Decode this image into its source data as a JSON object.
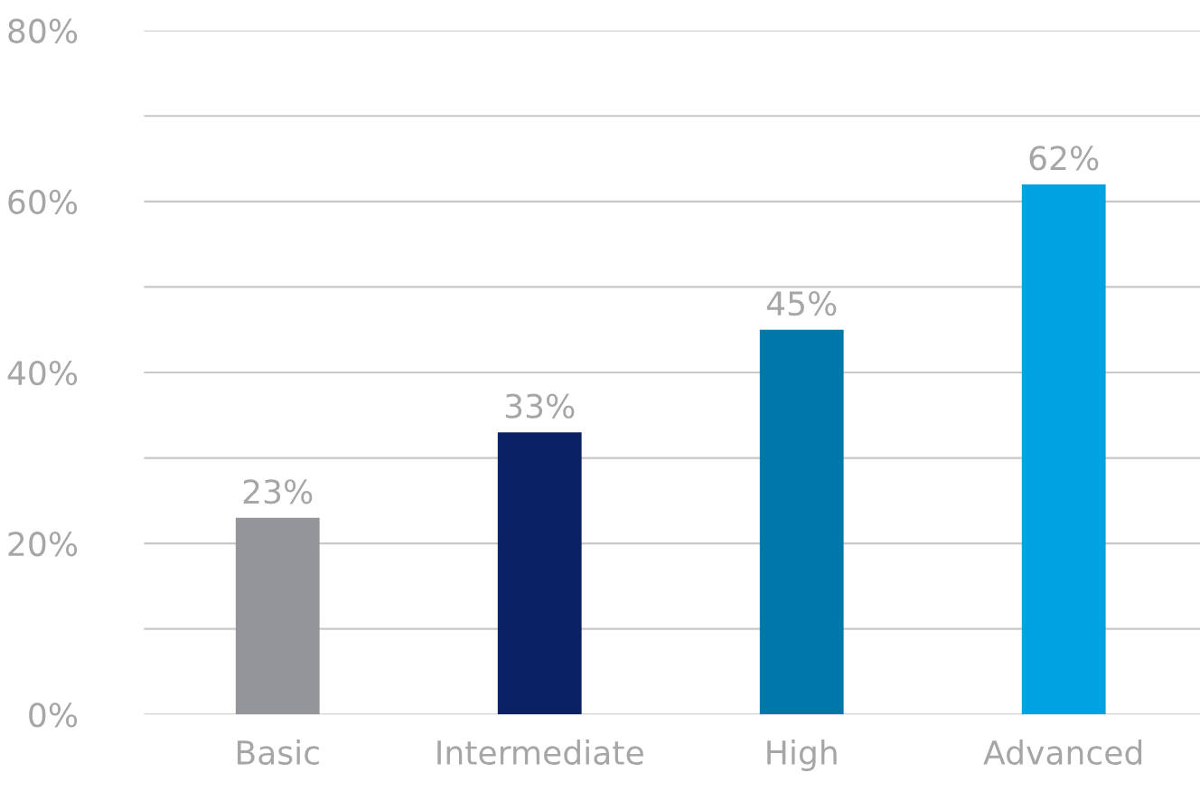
{
  "chart_data": {
    "type": "bar",
    "categories": [
      "Basic",
      "Intermediate",
      "High",
      "Advanced"
    ],
    "values": [
      23,
      33,
      45,
      62
    ],
    "colors": [
      "#939598",
      "#0a2264",
      "#0077aa",
      "#00a2e1"
    ],
    "value_labels": [
      "23%",
      "33%",
      "45%",
      "62%"
    ],
    "ylim": [
      0,
      80
    ],
    "yticks": [
      {
        "value": 0,
        "label": "0%"
      },
      {
        "value": 10,
        "label": null
      },
      {
        "value": 20,
        "label": "20%"
      },
      {
        "value": 30,
        "label": null
      },
      {
        "value": 40,
        "label": "40%"
      },
      {
        "value": 50,
        "label": null
      },
      {
        "value": 60,
        "label": "60%"
      },
      {
        "value": 70,
        "label": null
      },
      {
        "value": 80,
        "label": "80%"
      }
    ],
    "grid": "y"
  }
}
